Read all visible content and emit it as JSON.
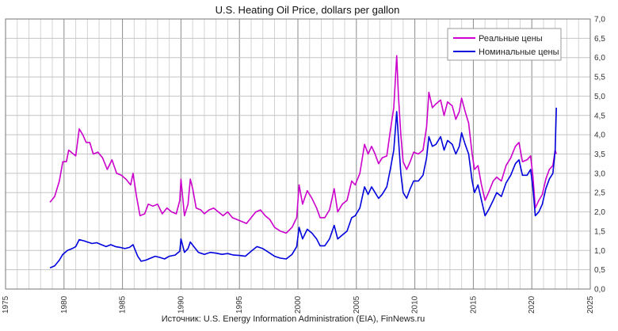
{
  "chart_data": {
    "type": "line",
    "title": "U.S. Heating Oil Price, dollars per gallon",
    "source": "Источник: U.S. Energy Information Administration (EIA), FinNews.ru",
    "x_ticks": [
      "1975",
      "1980",
      "1985",
      "1990",
      "1995",
      "2000",
      "2005",
      "2010",
      "2015",
      "2020",
      "2025"
    ],
    "y_ticks": [
      "0,0",
      "0,5",
      "1,0",
      "1,5",
      "2,0",
      "2,5",
      "3,0",
      "3,5",
      "4,0",
      "4,5",
      "5,0",
      "5,5",
      "6,0",
      "6,5",
      "7,0"
    ],
    "xlim": [
      1975,
      2025
    ],
    "ylim": [
      0,
      7
    ],
    "y_axis_side": "right",
    "grid": true,
    "legend_position": "top-right",
    "series": [
      {
        "name": "Реальные цены",
        "color": "#cc00cc",
        "points": [
          [
            1978.8,
            2.25
          ],
          [
            1979.2,
            2.4
          ],
          [
            1979.6,
            2.8
          ],
          [
            1979.9,
            3.3
          ],
          [
            1980.2,
            3.3
          ],
          [
            1980.4,
            3.6
          ],
          [
            1980.8,
            3.5
          ],
          [
            1981.0,
            3.45
          ],
          [
            1981.3,
            4.15
          ],
          [
            1981.6,
            4.0
          ],
          [
            1981.9,
            3.8
          ],
          [
            1982.2,
            3.8
          ],
          [
            1982.5,
            3.5
          ],
          [
            1982.9,
            3.55
          ],
          [
            1983.3,
            3.4
          ],
          [
            1983.7,
            3.1
          ],
          [
            1984.1,
            3.35
          ],
          [
            1984.5,
            3.0
          ],
          [
            1984.9,
            2.95
          ],
          [
            1985.3,
            2.85
          ],
          [
            1985.7,
            2.7
          ],
          [
            1985.9,
            3.0
          ],
          [
            1986.2,
            2.4
          ],
          [
            1986.5,
            1.9
          ],
          [
            1986.9,
            1.95
          ],
          [
            1987.2,
            2.2
          ],
          [
            1987.6,
            2.15
          ],
          [
            1988.0,
            2.2
          ],
          [
            1988.4,
            1.95
          ],
          [
            1988.8,
            2.1
          ],
          [
            1989.2,
            2.0
          ],
          [
            1989.6,
            1.95
          ],
          [
            1989.9,
            2.3
          ],
          [
            1990.0,
            2.85
          ],
          [
            1990.3,
            1.9
          ],
          [
            1990.6,
            2.2
          ],
          [
            1990.8,
            2.85
          ],
          [
            1991.0,
            2.6
          ],
          [
            1991.3,
            2.1
          ],
          [
            1991.7,
            2.05
          ],
          [
            1992.0,
            1.95
          ],
          [
            1992.4,
            2.05
          ],
          [
            1992.8,
            2.1
          ],
          [
            1993.2,
            2.0
          ],
          [
            1993.6,
            1.9
          ],
          [
            1994.0,
            2.0
          ],
          [
            1994.4,
            1.85
          ],
          [
            1994.8,
            1.8
          ],
          [
            1995.2,
            1.75
          ],
          [
            1995.6,
            1.7
          ],
          [
            1996.0,
            1.85
          ],
          [
            1996.4,
            2.0
          ],
          [
            1996.8,
            2.05
          ],
          [
            1997.2,
            1.9
          ],
          [
            1997.6,
            1.8
          ],
          [
            1998.0,
            1.6
          ],
          [
            1998.5,
            1.5
          ],
          [
            1999.0,
            1.45
          ],
          [
            1999.5,
            1.6
          ],
          [
            1999.9,
            1.85
          ],
          [
            2000.1,
            2.7
          ],
          [
            2000.4,
            2.2
          ],
          [
            2000.8,
            2.55
          ],
          [
            2001.2,
            2.35
          ],
          [
            2001.6,
            2.1
          ],
          [
            2001.9,
            1.85
          ],
          [
            2002.3,
            1.85
          ],
          [
            2002.7,
            2.05
          ],
          [
            2003.1,
            2.6
          ],
          [
            2003.4,
            2.0
          ],
          [
            2003.8,
            2.2
          ],
          [
            2004.2,
            2.3
          ],
          [
            2004.6,
            2.8
          ],
          [
            2004.9,
            2.7
          ],
          [
            2005.3,
            3.0
          ],
          [
            2005.7,
            3.75
          ],
          [
            2006.0,
            3.5
          ],
          [
            2006.3,
            3.7
          ],
          [
            2006.6,
            3.5
          ],
          [
            2006.9,
            3.25
          ],
          [
            2007.2,
            3.4
          ],
          [
            2007.6,
            3.45
          ],
          [
            2007.9,
            4.1
          ],
          [
            2008.2,
            4.7
          ],
          [
            2008.45,
            6.05
          ],
          [
            2008.6,
            5.0
          ],
          [
            2008.8,
            4.0
          ],
          [
            2009.0,
            3.3
          ],
          [
            2009.3,
            3.1
          ],
          [
            2009.6,
            3.3
          ],
          [
            2009.9,
            3.55
          ],
          [
            2010.3,
            3.5
          ],
          [
            2010.7,
            3.6
          ],
          [
            2011.0,
            4.2
          ],
          [
            2011.2,
            5.1
          ],
          [
            2011.5,
            4.7
          ],
          [
            2011.8,
            4.8
          ],
          [
            2012.2,
            4.9
          ],
          [
            2012.5,
            4.5
          ],
          [
            2012.8,
            4.85
          ],
          [
            2013.2,
            4.75
          ],
          [
            2013.5,
            4.4
          ],
          [
            2013.8,
            4.6
          ],
          [
            2014.0,
            4.95
          ],
          [
            2014.3,
            4.6
          ],
          [
            2014.6,
            4.3
          ],
          [
            2014.9,
            3.5
          ],
          [
            2015.1,
            3.1
          ],
          [
            2015.4,
            3.2
          ],
          [
            2015.7,
            2.7
          ],
          [
            2016.0,
            2.3
          ],
          [
            2016.3,
            2.5
          ],
          [
            2016.7,
            2.8
          ],
          [
            2017.0,
            2.9
          ],
          [
            2017.4,
            2.8
          ],
          [
            2017.8,
            3.2
          ],
          [
            2018.2,
            3.4
          ],
          [
            2018.6,
            3.7
          ],
          [
            2018.9,
            3.8
          ],
          [
            2019.2,
            3.3
          ],
          [
            2019.6,
            3.35
          ],
          [
            2019.9,
            3.45
          ],
          [
            2020.1,
            2.9
          ],
          [
            2020.3,
            2.1
          ],
          [
            2020.6,
            2.3
          ],
          [
            2020.9,
            2.45
          ],
          [
            2021.2,
            2.85
          ],
          [
            2021.5,
            3.1
          ],
          [
            2021.8,
            3.2
          ],
          [
            2022.0,
            3.6
          ],
          [
            2022.1,
            3.5
          ]
        ]
      },
      {
        "name": "Номинальные цены",
        "color": "#0000dd",
        "points": [
          [
            1978.8,
            0.55
          ],
          [
            1979.2,
            0.6
          ],
          [
            1979.6,
            0.75
          ],
          [
            1979.9,
            0.9
          ],
          [
            1980.3,
            1.0
          ],
          [
            1980.7,
            1.05
          ],
          [
            1981.0,
            1.1
          ],
          [
            1981.3,
            1.28
          ],
          [
            1981.7,
            1.25
          ],
          [
            1982.0,
            1.22
          ],
          [
            1982.4,
            1.18
          ],
          [
            1982.8,
            1.2
          ],
          [
            1983.2,
            1.15
          ],
          [
            1983.6,
            1.1
          ],
          [
            1984.0,
            1.15
          ],
          [
            1984.4,
            1.1
          ],
          [
            1984.8,
            1.08
          ],
          [
            1985.2,
            1.05
          ],
          [
            1985.6,
            1.08
          ],
          [
            1985.9,
            1.15
          ],
          [
            1986.3,
            0.85
          ],
          [
            1986.6,
            0.72
          ],
          [
            1987.0,
            0.75
          ],
          [
            1987.4,
            0.8
          ],
          [
            1987.8,
            0.85
          ],
          [
            1988.2,
            0.82
          ],
          [
            1988.6,
            0.78
          ],
          [
            1989.0,
            0.85
          ],
          [
            1989.5,
            0.88
          ],
          [
            1989.9,
            0.98
          ],
          [
            1990.0,
            1.3
          ],
          [
            1990.3,
            0.95
          ],
          [
            1990.6,
            1.05
          ],
          [
            1990.8,
            1.22
          ],
          [
            1991.1,
            1.1
          ],
          [
            1991.5,
            0.95
          ],
          [
            1992.0,
            0.9
          ],
          [
            1992.5,
            0.95
          ],
          [
            1993.0,
            0.93
          ],
          [
            1993.5,
            0.9
          ],
          [
            1994.0,
            0.92
          ],
          [
            1994.5,
            0.88
          ],
          [
            1995.0,
            0.87
          ],
          [
            1995.5,
            0.85
          ],
          [
            1996.0,
            0.98
          ],
          [
            1996.5,
            1.1
          ],
          [
            1997.0,
            1.05
          ],
          [
            1997.5,
            0.95
          ],
          [
            1998.0,
            0.85
          ],
          [
            1998.5,
            0.8
          ],
          [
            1999.0,
            0.78
          ],
          [
            1999.5,
            0.9
          ],
          [
            1999.9,
            1.1
          ],
          [
            2000.1,
            1.6
          ],
          [
            2000.4,
            1.3
          ],
          [
            2000.8,
            1.55
          ],
          [
            2001.2,
            1.45
          ],
          [
            2001.6,
            1.3
          ],
          [
            2001.9,
            1.12
          ],
          [
            2002.3,
            1.12
          ],
          [
            2002.7,
            1.3
          ],
          [
            2003.1,
            1.65
          ],
          [
            2003.4,
            1.3
          ],
          [
            2003.8,
            1.4
          ],
          [
            2004.2,
            1.5
          ],
          [
            2004.6,
            1.85
          ],
          [
            2004.9,
            1.9
          ],
          [
            2005.3,
            2.1
          ],
          [
            2005.7,
            2.65
          ],
          [
            2006.0,
            2.45
          ],
          [
            2006.3,
            2.65
          ],
          [
            2006.6,
            2.5
          ],
          [
            2006.9,
            2.35
          ],
          [
            2007.2,
            2.45
          ],
          [
            2007.6,
            2.65
          ],
          [
            2007.9,
            3.1
          ],
          [
            2008.2,
            3.6
          ],
          [
            2008.45,
            4.6
          ],
          [
            2008.6,
            3.9
          ],
          [
            2008.8,
            3.0
          ],
          [
            2009.0,
            2.5
          ],
          [
            2009.3,
            2.35
          ],
          [
            2009.6,
            2.6
          ],
          [
            2009.9,
            2.8
          ],
          [
            2010.3,
            2.8
          ],
          [
            2010.7,
            2.95
          ],
          [
            2011.0,
            3.4
          ],
          [
            2011.2,
            3.95
          ],
          [
            2011.5,
            3.7
          ],
          [
            2011.8,
            3.75
          ],
          [
            2012.2,
            3.95
          ],
          [
            2012.5,
            3.6
          ],
          [
            2012.8,
            3.85
          ],
          [
            2013.2,
            3.75
          ],
          [
            2013.5,
            3.5
          ],
          [
            2013.8,
            3.7
          ],
          [
            2014.0,
            4.05
          ],
          [
            2014.3,
            3.75
          ],
          [
            2014.6,
            3.5
          ],
          [
            2014.9,
            2.8
          ],
          [
            2015.1,
            2.5
          ],
          [
            2015.4,
            2.7
          ],
          [
            2015.7,
            2.3
          ],
          [
            2016.0,
            1.9
          ],
          [
            2016.3,
            2.05
          ],
          [
            2016.7,
            2.3
          ],
          [
            2017.0,
            2.5
          ],
          [
            2017.4,
            2.4
          ],
          [
            2017.8,
            2.75
          ],
          [
            2018.2,
            2.95
          ],
          [
            2018.6,
            3.25
          ],
          [
            2018.9,
            3.35
          ],
          [
            2019.2,
            2.95
          ],
          [
            2019.6,
            2.95
          ],
          [
            2019.9,
            3.1
          ],
          [
            2020.1,
            2.6
          ],
          [
            2020.3,
            1.9
          ],
          [
            2020.6,
            2.0
          ],
          [
            2020.9,
            2.2
          ],
          [
            2021.2,
            2.6
          ],
          [
            2021.5,
            2.85
          ],
          [
            2021.8,
            3.0
          ],
          [
            2022.0,
            3.6
          ],
          [
            2022.1,
            4.7
          ]
        ]
      }
    ]
  }
}
